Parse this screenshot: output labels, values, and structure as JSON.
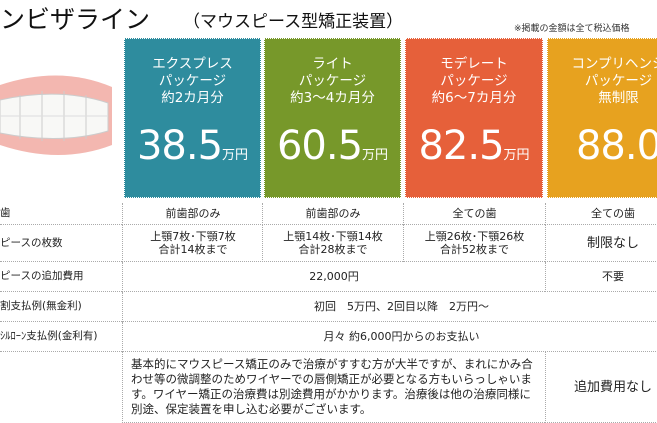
{
  "header": {
    "title": "ンビザライン",
    "subtitle": "（マウスピース型矯正装置）",
    "note": "※掲載の金額は全て税込価格"
  },
  "plans": [
    {
      "lines": [
        "エクスプレス",
        "パッケージ",
        "約2カ月分"
      ],
      "price": "38.5",
      "unit": "万円",
      "color": "#2e8c9e"
    },
    {
      "lines": [
        "ライト",
        "パッケージ",
        "約3～4カ月分"
      ],
      "price": "60.5",
      "unit": "万円",
      "color": "#77982a"
    },
    {
      "lines": [
        "モデレート",
        "パッケージ",
        "約6～7カ月分"
      ],
      "price": "82.5",
      "unit": "万円",
      "color": "#e6603a"
    },
    {
      "lines": [
        "コンプリヘンシ",
        "パッケージ",
        "無制限"
      ],
      "price": "88.0",
      "color": "#e7a21f"
    }
  ],
  "table": {
    "rows": [
      [
        "歯",
        "前歯部のみ",
        "前歯部のみ",
        "全ての歯",
        "全ての歯"
      ],
      [
        "ピースの枚数",
        "上顎7枚･下顎7枚\n合計14枚まで",
        "上顎14枚･下顎14枚\n合計28枚まで",
        "上顎26枚･下顎26枚\n合計52枚まで",
        "制限なし"
      ],
      [
        "ピースの追加費用",
        "22,000円",
        "不要"
      ],
      [
        "割支払例(無金利)",
        "初回　5万円、2回目以降　2万円〜"
      ],
      [
        "ｼﾙﾛｰﾝ支払例(金利有)",
        "月々 約6,000円からのお支払い"
      ],
      [
        "基本的にマウスピース矯正のみで治療がすすむ方が大半ですが、まれにかみ合わせ等の微調整のためワイヤーでの唇側矯正が必要となる方もいらっしゃいます。ワイヤー矯正の治療費は別途費用がかかります。治療後は他の治療同様に別途、保定装置を申し込む必要がございます。",
        "追加費用なし"
      ]
    ]
  }
}
